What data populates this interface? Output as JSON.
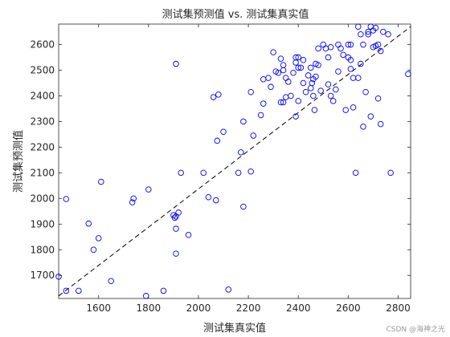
{
  "chart_data": {
    "type": "scatter",
    "title": "测试集预测值 vs. 测试集真实值",
    "xlabel": "测试集真实值",
    "ylabel": "测试集预测值",
    "xlim": [
      1440,
      2850
    ],
    "ylim": [
      1610,
      2680
    ],
    "xticks": [
      1600,
      1800,
      2000,
      2200,
      2400,
      2600,
      2800
    ],
    "yticks": [
      1700,
      1800,
      1900,
      2000,
      2100,
      2200,
      2300,
      2400,
      2500,
      2600
    ],
    "grid": false,
    "marker": "circle-open",
    "colors": {
      "points": "#0000ff",
      "reference_line": "#000000"
    },
    "reference_line": {
      "style": "dashed",
      "from": [
        1440,
        1620
      ],
      "to": [
        2850,
        2670
      ]
    },
    "points": [
      [
        1440,
        1695
      ],
      [
        1470,
        1998
      ],
      [
        1470,
        1640
      ],
      [
        1520,
        1640
      ],
      [
        1560,
        1902
      ],
      [
        1580,
        1800
      ],
      [
        1600,
        1845
      ],
      [
        1610,
        2065
      ],
      [
        1650,
        1678
      ],
      [
        1735,
        1985
      ],
      [
        1740,
        2000
      ],
      [
        1800,
        2035
      ],
      [
        1790,
        1620
      ],
      [
        1860,
        1640
      ],
      [
        1900,
        1935
      ],
      [
        1905,
        1925
      ],
      [
        1910,
        1930
      ],
      [
        1920,
        1945
      ],
      [
        1910,
        1882
      ],
      [
        1910,
        1785
      ],
      [
        1930,
        2100
      ],
      [
        1910,
        2525
      ],
      [
        1960,
        1858
      ],
      [
        2020,
        2100
      ],
      [
        2040,
        2005
      ],
      [
        2070,
        1993
      ],
      [
        2060,
        2395
      ],
      [
        2080,
        2405
      ],
      [
        2075,
        2225
      ],
      [
        2100,
        2260
      ],
      [
        2120,
        1645
      ],
      [
        2160,
        2100
      ],
      [
        2170,
        2180
      ],
      [
        2180,
        1968
      ],
      [
        2180,
        2300
      ],
      [
        2210,
        2105
      ],
      [
        2220,
        2245
      ],
      [
        2210,
        2415
      ],
      [
        2250,
        2325
      ],
      [
        2260,
        2370
      ],
      [
        2260,
        2465
      ],
      [
        2280,
        2470
      ],
      [
        2290,
        2435
      ],
      [
        2300,
        2570
      ],
      [
        2310,
        2495
      ],
      [
        2320,
        2490
      ],
      [
        2330,
        2545
      ],
      [
        2340,
        2500
      ],
      [
        2340,
        2520
      ],
      [
        2350,
        2395
      ],
      [
        2350,
        2470
      ],
      [
        2360,
        2455
      ],
      [
        2330,
        2375
      ],
      [
        2340,
        2375
      ],
      [
        2370,
        2400
      ],
      [
        2380,
        2490
      ],
      [
        2390,
        2550
      ],
      [
        2390,
        2530
      ],
      [
        2400,
        2550
      ],
      [
        2400,
        2510
      ],
      [
        2390,
        2320
      ],
      [
        2400,
        2380
      ],
      [
        2410,
        2510
      ],
      [
        2420,
        2540
      ],
      [
        2420,
        2450
      ],
      [
        2430,
        2415
      ],
      [
        2440,
        2480
      ],
      [
        2450,
        2510
      ],
      [
        2450,
        2430
      ],
      [
        2455,
        2450
      ],
      [
        2460,
        2465
      ],
      [
        2470,
        2475
      ],
      [
        2460,
        2400
      ],
      [
        2465,
        2345
      ],
      [
        2470,
        2525
      ],
      [
        2480,
        2520
      ],
      [
        2480,
        2585
      ],
      [
        2490,
        2420
      ],
      [
        2500,
        2600
      ],
      [
        2510,
        2585
      ],
      [
        2520,
        2550
      ],
      [
        2520,
        2445
      ],
      [
        2530,
        2400
      ],
      [
        2540,
        2380
      ],
      [
        2530,
        2590
      ],
      [
        2550,
        2425
      ],
      [
        2560,
        2495
      ],
      [
        2560,
        2600
      ],
      [
        2570,
        2585
      ],
      [
        2580,
        2560
      ],
      [
        2590,
        2345
      ],
      [
        2600,
        2550
      ],
      [
        2600,
        2600
      ],
      [
        2610,
        2600
      ],
      [
        2610,
        2505
      ],
      [
        2610,
        2540
      ],
      [
        2620,
        2470
      ],
      [
        2620,
        2355
      ],
      [
        2630,
        2100
      ],
      [
        2640,
        2670
      ],
      [
        2640,
        2470
      ],
      [
        2650,
        2640
      ],
      [
        2650,
        2525
      ],
      [
        2660,
        2280
      ],
      [
        2660,
        2600
      ],
      [
        2670,
        2415
      ],
      [
        2680,
        2650
      ],
      [
        2680,
        2640
      ],
      [
        2690,
        2670
      ],
      [
        2690,
        2320
      ],
      [
        2700,
        2655
      ],
      [
        2700,
        2590
      ],
      [
        2710,
        2665
      ],
      [
        2710,
        2595
      ],
      [
        2720,
        2600
      ],
      [
        2720,
        2390
      ],
      [
        2730,
        2575
      ],
      [
        2730,
        2290
      ],
      [
        2740,
        2650
      ],
      [
        2760,
        2640
      ],
      [
        2770,
        2100
      ],
      [
        2840,
        2485
      ]
    ]
  },
  "watermark": "CSDN @海神之光"
}
